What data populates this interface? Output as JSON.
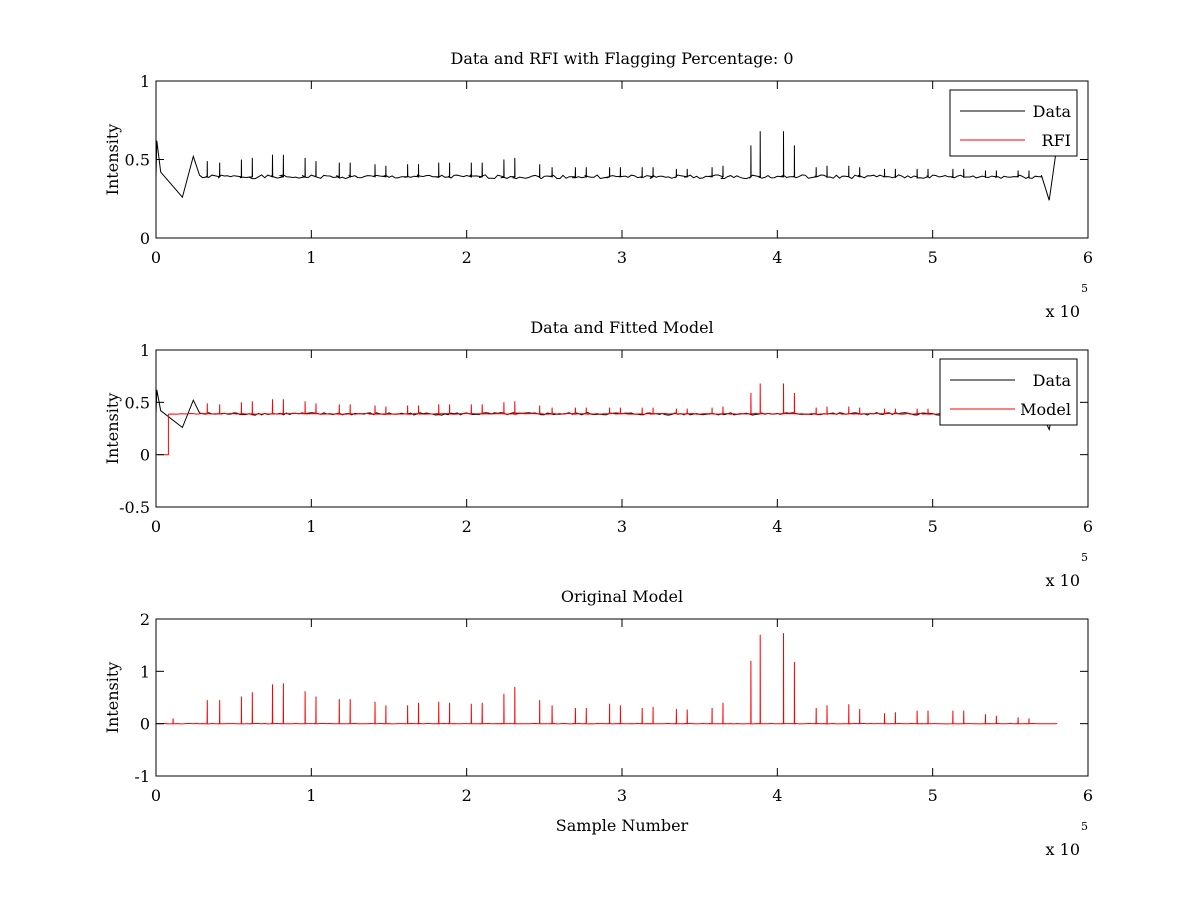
{
  "figure": {
    "background": "#ffffff",
    "colors": {
      "data": "#000000",
      "model": "#ff0000",
      "axes": "#000000"
    }
  },
  "chart_data": [
    {
      "type": "line",
      "title": "Data and RFI with Flagging Percentage: 0",
      "xlabel": "",
      "ylabel": "Intensity",
      "xlim": [
        0,
        6
      ],
      "ylim": [
        0,
        1
      ],
      "xticks": [
        0,
        1,
        2,
        3,
        4,
        5,
        6
      ],
      "yticks": [
        0,
        0.5,
        1
      ],
      "xtick_labels": [
        "0",
        "1",
        "2",
        "3",
        "4",
        "5",
        "6"
      ],
      "ytick_labels": [
        "0",
        "0.5",
        "1"
      ],
      "x_multiplier": {
        "base": "x 10",
        "exponent": "5"
      },
      "grid": false,
      "legend": {
        "location": "top-right",
        "entries": [
          "Data",
          "RFI"
        ]
      },
      "series": [
        {
          "name": "Data",
          "color": "#000000",
          "baseline": 0.39,
          "x_end": 5.8,
          "features": [
            {
              "x": 0.005,
              "y": 0.62
            },
            {
              "x": 0.03,
              "y": 0.42
            },
            {
              "x": 0.17,
              "y": 0.26
            },
            {
              "x": 0.24,
              "y": 0.52
            },
            {
              "x": 0.28,
              "y": 0.4
            },
            {
              "x": 5.7,
              "y": 0.4
            },
            {
              "x": 5.75,
              "y": 0.24
            },
            {
              "x": 5.79,
              "y": 0.52
            }
          ],
          "spikes": [
            {
              "x": 0.33,
              "y": 0.49
            },
            {
              "x": 0.41,
              "y": 0.48
            },
            {
              "x": 0.55,
              "y": 0.5
            },
            {
              "x": 0.62,
              "y": 0.51
            },
            {
              "x": 0.75,
              "y": 0.53
            },
            {
              "x": 0.82,
              "y": 0.53
            },
            {
              "x": 0.96,
              "y": 0.51
            },
            {
              "x": 1.03,
              "y": 0.49
            },
            {
              "x": 1.18,
              "y": 0.48
            },
            {
              "x": 1.25,
              "y": 0.48
            },
            {
              "x": 1.41,
              "y": 0.47
            },
            {
              "x": 1.48,
              "y": 0.46
            },
            {
              "x": 1.62,
              "y": 0.47
            },
            {
              "x": 1.69,
              "y": 0.47
            },
            {
              "x": 1.82,
              "y": 0.48
            },
            {
              "x": 1.89,
              "y": 0.48
            },
            {
              "x": 2.03,
              "y": 0.48
            },
            {
              "x": 2.1,
              "y": 0.48
            },
            {
              "x": 2.24,
              "y": 0.5
            },
            {
              "x": 2.31,
              "y": 0.51
            },
            {
              "x": 2.47,
              "y": 0.47
            },
            {
              "x": 2.55,
              "y": 0.45
            },
            {
              "x": 2.7,
              "y": 0.45
            },
            {
              "x": 2.77,
              "y": 0.45
            },
            {
              "x": 2.92,
              "y": 0.45
            },
            {
              "x": 2.99,
              "y": 0.45
            },
            {
              "x": 3.13,
              "y": 0.45
            },
            {
              "x": 3.2,
              "y": 0.45
            },
            {
              "x": 3.35,
              "y": 0.44
            },
            {
              "x": 3.42,
              "y": 0.44
            },
            {
              "x": 3.58,
              "y": 0.45
            },
            {
              "x": 3.65,
              "y": 0.46
            },
            {
              "x": 3.83,
              "y": 0.59
            },
            {
              "x": 3.89,
              "y": 0.68
            },
            {
              "x": 4.04,
              "y": 0.68
            },
            {
              "x": 4.11,
              "y": 0.59
            },
            {
              "x": 4.25,
              "y": 0.45
            },
            {
              "x": 4.32,
              "y": 0.46
            },
            {
              "x": 4.46,
              "y": 0.46
            },
            {
              "x": 4.53,
              "y": 0.45
            },
            {
              "x": 4.69,
              "y": 0.44
            },
            {
              "x": 4.76,
              "y": 0.44
            },
            {
              "x": 4.9,
              "y": 0.44
            },
            {
              "x": 4.97,
              "y": 0.44
            },
            {
              "x": 5.13,
              "y": 0.44
            },
            {
              "x": 5.2,
              "y": 0.44
            },
            {
              "x": 5.34,
              "y": 0.43
            },
            {
              "x": 5.41,
              "y": 0.43
            },
            {
              "x": 5.55,
              "y": 0.43
            },
            {
              "x": 5.62,
              "y": 0.43
            }
          ]
        },
        {
          "name": "RFI",
          "color": "#ff0000",
          "points": []
        }
      ]
    },
    {
      "type": "line",
      "title": "Data and Fitted Model",
      "xlabel": "",
      "ylabel": "Intensity",
      "xlim": [
        0,
        6
      ],
      "ylim": [
        -0.5,
        1
      ],
      "xticks": [
        0,
        1,
        2,
        3,
        4,
        5,
        6
      ],
      "yticks": [
        -0.5,
        0,
        0.5,
        1
      ],
      "xtick_labels": [
        "0",
        "1",
        "2",
        "3",
        "4",
        "5",
        "6"
      ],
      "ytick_labels": [
        "-0.5",
        "0",
        "0.5",
        "1"
      ],
      "x_multiplier": {
        "base": "x 10",
        "exponent": "5"
      },
      "grid": false,
      "legend": {
        "location": "top-right",
        "entries": [
          "Data",
          "Model"
        ]
      },
      "series": [
        {
          "name": "Data",
          "color": "#000000",
          "baseline": 0.39,
          "x_end": 5.8,
          "features": [
            {
              "x": 0.005,
              "y": 0.62
            },
            {
              "x": 0.03,
              "y": 0.42
            },
            {
              "x": 0.17,
              "y": 0.26
            },
            {
              "x": 0.24,
              "y": 0.52
            },
            {
              "x": 0.28,
              "y": 0.4
            },
            {
              "x": 5.7,
              "y": 0.4
            },
            {
              "x": 5.75,
              "y": 0.24
            },
            {
              "x": 5.79,
              "y": 0.52
            }
          ]
        },
        {
          "name": "Model",
          "color": "#ff0000",
          "baseline": 0.39,
          "x_end": 5.8,
          "step": {
            "x_from": 0.01,
            "x_to": 0.08,
            "y": 0.0
          },
          "spikes": [
            {
              "x": 0.33,
              "y": 0.49
            },
            {
              "x": 0.41,
              "y": 0.48
            },
            {
              "x": 0.55,
              "y": 0.5
            },
            {
              "x": 0.62,
              "y": 0.51
            },
            {
              "x": 0.75,
              "y": 0.53
            },
            {
              "x": 0.82,
              "y": 0.53
            },
            {
              "x": 0.96,
              "y": 0.51
            },
            {
              "x": 1.03,
              "y": 0.49
            },
            {
              "x": 1.18,
              "y": 0.48
            },
            {
              "x": 1.25,
              "y": 0.48
            },
            {
              "x": 1.41,
              "y": 0.47
            },
            {
              "x": 1.48,
              "y": 0.46
            },
            {
              "x": 1.62,
              "y": 0.47
            },
            {
              "x": 1.69,
              "y": 0.47
            },
            {
              "x": 1.82,
              "y": 0.48
            },
            {
              "x": 1.89,
              "y": 0.48
            },
            {
              "x": 2.03,
              "y": 0.48
            },
            {
              "x": 2.1,
              "y": 0.48
            },
            {
              "x": 2.24,
              "y": 0.5
            },
            {
              "x": 2.31,
              "y": 0.51
            },
            {
              "x": 2.47,
              "y": 0.47
            },
            {
              "x": 2.55,
              "y": 0.45
            },
            {
              "x": 2.7,
              "y": 0.45
            },
            {
              "x": 2.77,
              "y": 0.45
            },
            {
              "x": 2.92,
              "y": 0.45
            },
            {
              "x": 2.99,
              "y": 0.45
            },
            {
              "x": 3.13,
              "y": 0.45
            },
            {
              "x": 3.2,
              "y": 0.45
            },
            {
              "x": 3.35,
              "y": 0.44
            },
            {
              "x": 3.42,
              "y": 0.44
            },
            {
              "x": 3.58,
              "y": 0.45
            },
            {
              "x": 3.65,
              "y": 0.46
            },
            {
              "x": 3.83,
              "y": 0.59
            },
            {
              "x": 3.89,
              "y": 0.68
            },
            {
              "x": 4.04,
              "y": 0.68
            },
            {
              "x": 4.11,
              "y": 0.59
            },
            {
              "x": 4.25,
              "y": 0.45
            },
            {
              "x": 4.32,
              "y": 0.46
            },
            {
              "x": 4.46,
              "y": 0.46
            },
            {
              "x": 4.53,
              "y": 0.45
            },
            {
              "x": 4.69,
              "y": 0.44
            },
            {
              "x": 4.76,
              "y": 0.44
            },
            {
              "x": 4.9,
              "y": 0.44
            },
            {
              "x": 4.97,
              "y": 0.44
            },
            {
              "x": 5.13,
              "y": 0.44
            },
            {
              "x": 5.2,
              "y": 0.44
            },
            {
              "x": 5.34,
              "y": 0.43
            },
            {
              "x": 5.41,
              "y": 0.43
            },
            {
              "x": 5.55,
              "y": 0.43
            },
            {
              "x": 5.62,
              "y": 0.43
            }
          ]
        }
      ]
    },
    {
      "type": "line",
      "title": "Original Model",
      "xlabel": "Sample Number",
      "ylabel": "Intensity",
      "xlim": [
        0,
        6
      ],
      "ylim": [
        -1,
        2
      ],
      "xticks": [
        0,
        1,
        2,
        3,
        4,
        5,
        6
      ],
      "yticks": [
        -1,
        0,
        1,
        2
      ],
      "xtick_labels": [
        "0",
        "1",
        "2",
        "3",
        "4",
        "5",
        "6"
      ],
      "ytick_labels": [
        "-1",
        "0",
        "1",
        "2"
      ],
      "x_multiplier": {
        "base": "x 10",
        "exponent": "5"
      },
      "grid": false,
      "series": [
        {
          "name": "Model",
          "color": "#ff0000",
          "baseline": 0.0,
          "x_end": 5.8,
          "spikes": [
            {
              "x": 0.11,
              "y": 0.1
            },
            {
              "x": 0.33,
              "y": 0.45
            },
            {
              "x": 0.41,
              "y": 0.45
            },
            {
              "x": 0.55,
              "y": 0.52
            },
            {
              "x": 0.62,
              "y": 0.6
            },
            {
              "x": 0.75,
              "y": 0.75
            },
            {
              "x": 0.82,
              "y": 0.77
            },
            {
              "x": 0.96,
              "y": 0.62
            },
            {
              "x": 1.03,
              "y": 0.52
            },
            {
              "x": 1.18,
              "y": 0.47
            },
            {
              "x": 1.25,
              "y": 0.47
            },
            {
              "x": 1.41,
              "y": 0.42
            },
            {
              "x": 1.48,
              "y": 0.35
            },
            {
              "x": 1.62,
              "y": 0.35
            },
            {
              "x": 1.69,
              "y": 0.4
            },
            {
              "x": 1.82,
              "y": 0.42
            },
            {
              "x": 1.89,
              "y": 0.4
            },
            {
              "x": 2.03,
              "y": 0.38
            },
            {
              "x": 2.1,
              "y": 0.4
            },
            {
              "x": 2.24,
              "y": 0.57
            },
            {
              "x": 2.31,
              "y": 0.7
            },
            {
              "x": 2.47,
              "y": 0.45
            },
            {
              "x": 2.55,
              "y": 0.35
            },
            {
              "x": 2.7,
              "y": 0.3
            },
            {
              "x": 2.77,
              "y": 0.3
            },
            {
              "x": 2.92,
              "y": 0.38
            },
            {
              "x": 2.99,
              "y": 0.35
            },
            {
              "x": 3.13,
              "y": 0.3
            },
            {
              "x": 3.2,
              "y": 0.32
            },
            {
              "x": 3.35,
              "y": 0.28
            },
            {
              "x": 3.42,
              "y": 0.27
            },
            {
              "x": 3.58,
              "y": 0.3
            },
            {
              "x": 3.65,
              "y": 0.4
            },
            {
              "x": 3.83,
              "y": 1.2
            },
            {
              "x": 3.89,
              "y": 1.7
            },
            {
              "x": 4.04,
              "y": 1.73
            },
            {
              "x": 4.11,
              "y": 1.18
            },
            {
              "x": 4.25,
              "y": 0.3
            },
            {
              "x": 4.32,
              "y": 0.35
            },
            {
              "x": 4.46,
              "y": 0.37
            },
            {
              "x": 4.53,
              "y": 0.28
            },
            {
              "x": 4.69,
              "y": 0.2
            },
            {
              "x": 4.76,
              "y": 0.22
            },
            {
              "x": 4.9,
              "y": 0.25
            },
            {
              "x": 4.97,
              "y": 0.25
            },
            {
              "x": 5.13,
              "y": 0.25
            },
            {
              "x": 5.2,
              "y": 0.25
            },
            {
              "x": 5.34,
              "y": 0.18
            },
            {
              "x": 5.41,
              "y": 0.15
            },
            {
              "x": 5.55,
              "y": 0.12
            },
            {
              "x": 5.62,
              "y": 0.1
            }
          ]
        }
      ]
    }
  ]
}
